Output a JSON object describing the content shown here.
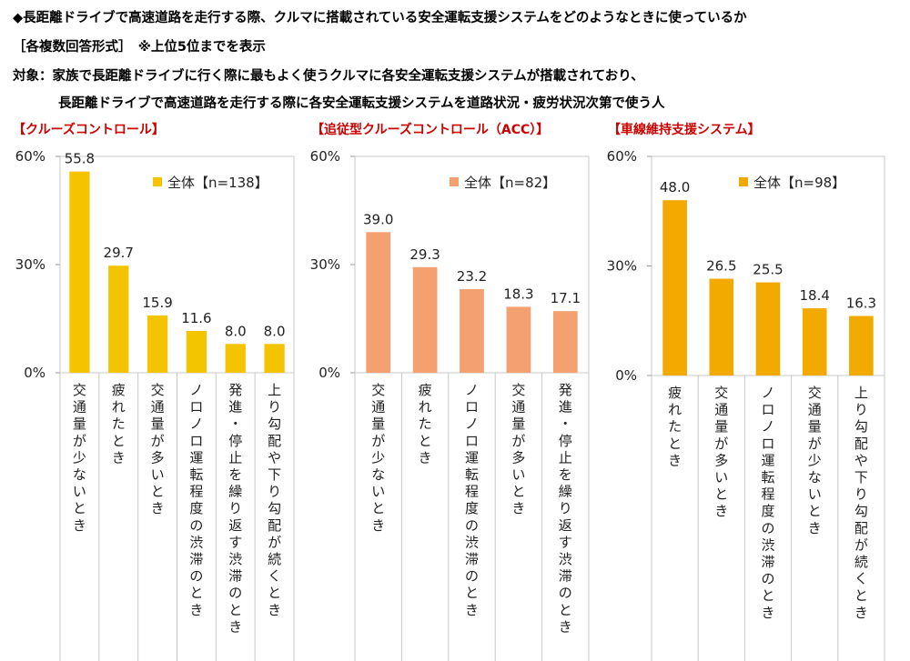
{
  "header": {
    "line1": "◆長距離ドライブで高速道路を走行する際、クルマに搭載されている安全運転支援システムをどのようなときに使っているか",
    "line2": "［各複数回答形式］　※上位5位までを表示",
    "line3": "対象：家族で長距離ドライブに行く際に最もよく使うクルマに各安全運転支援システムが搭載されており、",
    "line4": "長距離ドライブで高速道路を走行する際に各安全運転支援システムを道路状況・疲労状況次第で使う人"
  },
  "chart_data": [
    {
      "type": "bar",
      "title": "【クルーズコントロール】",
      "legend": "全体【n=138】",
      "color": "#f5c400",
      "ylim": [
        0,
        60
      ],
      "yticks": [
        "0%",
        "30%",
        "60%"
      ],
      "categories": [
        "交通量が少ないとき",
        "疲れたとき",
        "交通量が多いとき",
        "ノロノロ運転程度の渋滞のとき",
        "発進・停止を繰り返す渋滞のとき",
        "上り勾配や下り勾配が続くとき"
      ],
      "values": [
        55.8,
        29.7,
        15.9,
        11.6,
        8.0,
        8.0
      ],
      "labels": [
        "55.8",
        "29.7",
        "15.9",
        "11.6",
        "8.0",
        "8.0"
      ]
    },
    {
      "type": "bar",
      "title": "【追従型クルーズコントロール（ACC）】",
      "legend": "全体【n=82】",
      "color": "#f5a070",
      "ylim": [
        0,
        60
      ],
      "yticks": [
        "0%",
        "30%",
        "60%"
      ],
      "categories": [
        "交通量が少ないとき",
        "疲れたとき",
        "ノロノロ運転程度の渋滞のとき",
        "交通量が多いとき",
        "発進・停止を繰り返す渋滞のとき"
      ],
      "values": [
        39.0,
        29.3,
        23.2,
        18.3,
        17.1
      ],
      "labels": [
        "39.0",
        "29.3",
        "23.2",
        "18.3",
        "17.1"
      ]
    },
    {
      "type": "bar",
      "title": "【車線維持支援システム】",
      "legend": "全体【n=98】",
      "color": "#f2a900",
      "ylim": [
        0,
        60
      ],
      "yticks": [
        "0%",
        "30%",
        "60%"
      ],
      "categories": [
        "疲れたとき",
        "交通量が多いとき",
        "ノロノロ運転程度の渋滞のとき",
        "交通量が少ないとき",
        "上り勾配や下り勾配が続くとき"
      ],
      "values": [
        48.0,
        26.5,
        25.5,
        18.4,
        16.3
      ],
      "labels": [
        "48.0",
        "26.5",
        "25.5",
        "18.4",
        "16.3"
      ]
    }
  ]
}
